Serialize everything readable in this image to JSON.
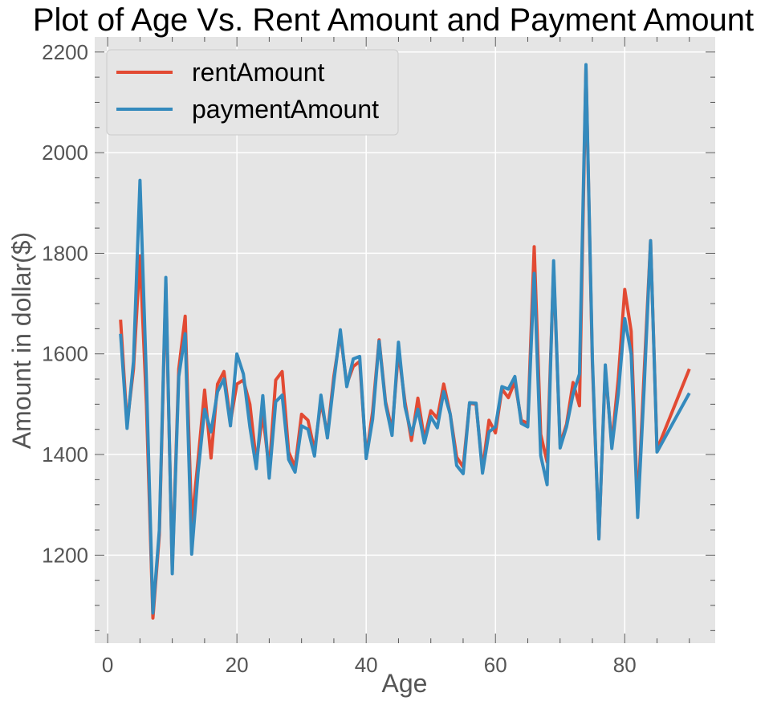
{
  "chart_data": {
    "type": "line",
    "title": "Plot of Age Vs. Rent Amount and Payment Amount",
    "xlabel": "Age",
    "ylabel": "Amount in dollar($)",
    "xlim": [
      -2,
      94
    ],
    "ylim": [
      1025,
      2230
    ],
    "xticks": [
      0,
      20,
      40,
      60,
      80
    ],
    "yticks": [
      1200,
      1400,
      1600,
      1800,
      2000,
      2200
    ],
    "grid": true,
    "legend_position": "top-left",
    "background_color": "#e5e5e5",
    "series": [
      {
        "name": "rentAmount",
        "color": "#e24a33",
        "x": [
          2,
          3,
          4,
          5,
          6,
          7,
          8,
          9,
          10,
          11,
          12,
          13,
          14,
          15,
          16,
          17,
          18,
          19,
          20,
          21,
          22,
          23,
          24,
          25,
          26,
          27,
          28,
          29,
          30,
          31,
          32,
          33,
          34,
          35,
          36,
          37,
          38,
          39,
          40,
          41,
          42,
          43,
          44,
          45,
          46,
          47,
          48,
          49,
          50,
          51,
          52,
          53,
          54,
          55,
          56,
          57,
          58,
          59,
          60,
          61,
          62,
          63,
          64,
          65,
          66,
          67,
          68,
          69,
          70,
          71,
          72,
          73,
          74,
          75,
          76,
          77,
          78,
          79,
          80,
          81,
          82,
          83,
          84,
          85,
          90
        ],
        "y": [
          1668,
          1460,
          1570,
          1795,
          1500,
          1075,
          1240,
          1740,
          1170,
          1570,
          1675,
          1260,
          1390,
          1528,
          1393,
          1540,
          1565,
          1465,
          1540,
          1548,
          1500,
          1385,
          1480,
          1370,
          1548,
          1565,
          1405,
          1375,
          1480,
          1468,
          1408,
          1505,
          1440,
          1555,
          1640,
          1540,
          1575,
          1585,
          1395,
          1485,
          1628,
          1505,
          1448,
          1605,
          1505,
          1428,
          1512,
          1430,
          1487,
          1472,
          1540,
          1480,
          1395,
          1375,
          1502,
          1500,
          1370,
          1468,
          1443,
          1530,
          1513,
          1545,
          1468,
          1462,
          1813,
          1440,
          1385,
          1770,
          1420,
          1460,
          1543,
          1497,
          2170,
          1580,
          1235,
          1570,
          1420,
          1550,
          1728,
          1645,
          1290,
          1560,
          1825,
          1410,
          1570
        ]
      },
      {
        "name": "paymentAmount",
        "color": "#348abd",
        "x": [
          2,
          3,
          4,
          5,
          6,
          7,
          8,
          9,
          10,
          11,
          12,
          13,
          14,
          15,
          16,
          17,
          18,
          19,
          20,
          21,
          22,
          23,
          24,
          25,
          26,
          27,
          28,
          29,
          30,
          31,
          32,
          33,
          34,
          35,
          36,
          37,
          38,
          39,
          40,
          41,
          42,
          43,
          44,
          45,
          46,
          47,
          48,
          49,
          50,
          51,
          52,
          53,
          54,
          55,
          56,
          57,
          58,
          59,
          60,
          61,
          62,
          63,
          64,
          65,
          66,
          67,
          68,
          69,
          70,
          71,
          72,
          73,
          74,
          75,
          76,
          77,
          78,
          79,
          80,
          81,
          82,
          83,
          84,
          85,
          90
        ],
        "y": [
          1640,
          1452,
          1585,
          1945,
          1550,
          1085,
          1250,
          1752,
          1163,
          1555,
          1640,
          1202,
          1365,
          1490,
          1445,
          1525,
          1550,
          1457,
          1600,
          1560,
          1455,
          1372,
          1517,
          1353,
          1505,
          1518,
          1390,
          1365,
          1457,
          1450,
          1397,
          1518,
          1433,
          1545,
          1648,
          1535,
          1590,
          1595,
          1392,
          1470,
          1625,
          1500,
          1438,
          1623,
          1495,
          1440,
          1490,
          1423,
          1475,
          1453,
          1525,
          1480,
          1378,
          1362,
          1503,
          1502,
          1363,
          1445,
          1455,
          1535,
          1530,
          1555,
          1462,
          1455,
          1760,
          1398,
          1340,
          1785,
          1413,
          1455,
          1520,
          1560,
          2175,
          1590,
          1232,
          1578,
          1412,
          1520,
          1670,
          1600,
          1275,
          1530,
          1825,
          1405,
          1522
        ]
      }
    ]
  }
}
